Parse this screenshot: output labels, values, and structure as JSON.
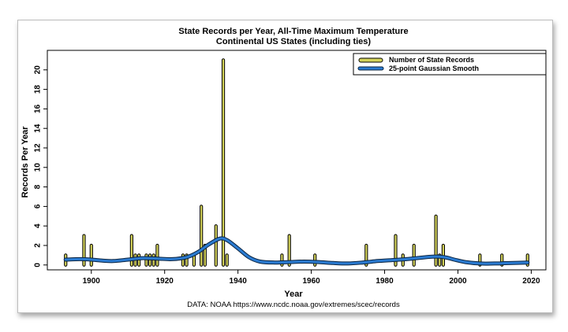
{
  "chart_data": {
    "type": "bar",
    "title": "State Records per Year, All-Time Maximum Temperature",
    "subtitle": "Continental US States (including ties)",
    "xlabel": "Year",
    "ylabel": "Records Per Year",
    "source": "DATA: NOAA https://www.ncdc.noaa.gov/extremes/scec/records",
    "xlim": [
      1888,
      2024
    ],
    "ylim": [
      -0.5,
      22
    ],
    "x_ticks": [
      1900,
      1920,
      1940,
      1960,
      1980,
      2000,
      2020
    ],
    "y_ticks": [
      0,
      2,
      4,
      6,
      8,
      10,
      12,
      14,
      16,
      18,
      20
    ],
    "legend_position": "top-right",
    "series": [
      {
        "name": "Number of State Records",
        "kind": "bar",
        "color": "#d4d35a",
        "outline": "#000000",
        "data": [
          {
            "year": 1893,
            "value": 1
          },
          {
            "year": 1898,
            "value": 3
          },
          {
            "year": 1900,
            "value": 2
          },
          {
            "year": 1911,
            "value": 3
          },
          {
            "year": 1912,
            "value": 1
          },
          {
            "year": 1913,
            "value": 1
          },
          {
            "year": 1915,
            "value": 1
          },
          {
            "year": 1916,
            "value": 1
          },
          {
            "year": 1917,
            "value": 1
          },
          {
            "year": 1918,
            "value": 2
          },
          {
            "year": 1925,
            "value": 1
          },
          {
            "year": 1926,
            "value": 1
          },
          {
            "year": 1928,
            "value": 1
          },
          {
            "year": 1930,
            "value": 6
          },
          {
            "year": 1931,
            "value": 2
          },
          {
            "year": 1934,
            "value": 4
          },
          {
            "year": 1936,
            "value": 21
          },
          {
            "year": 1937,
            "value": 1
          },
          {
            "year": 1952,
            "value": 1
          },
          {
            "year": 1954,
            "value": 3
          },
          {
            "year": 1961,
            "value": 1
          },
          {
            "year": 1975,
            "value": 2
          },
          {
            "year": 1983,
            "value": 3
          },
          {
            "year": 1985,
            "value": 1
          },
          {
            "year": 1988,
            "value": 2
          },
          {
            "year": 1994,
            "value": 5
          },
          {
            "year": 1995,
            "value": 1
          },
          {
            "year": 1996,
            "value": 2
          },
          {
            "year": 2006,
            "value": 1
          },
          {
            "year": 2012,
            "value": 1
          },
          {
            "year": 2019,
            "value": 1
          }
        ]
      },
      {
        "name": "25-point Gaussian Smooth",
        "kind": "line",
        "color": "#2b7bd1",
        "outline": "#0b2440",
        "x": [
          1893,
          1897,
          1900,
          1903,
          1906,
          1910,
          1914,
          1918,
          1922,
          1926,
          1929,
          1932,
          1935,
          1937,
          1940,
          1943,
          1946,
          1950,
          1954,
          1958,
          1962,
          1966,
          1970,
          1974,
          1978,
          1982,
          1986,
          1990,
          1993,
          1995,
          1997,
          1999,
          2002,
          2006,
          2010,
          2015,
          2019
        ],
        "y": [
          0.55,
          0.6,
          0.55,
          0.45,
          0.4,
          0.55,
          0.7,
          0.65,
          0.6,
          0.8,
          1.3,
          2.1,
          2.7,
          2.55,
          1.7,
          0.8,
          0.35,
          0.25,
          0.3,
          0.35,
          0.3,
          0.2,
          0.15,
          0.25,
          0.4,
          0.5,
          0.6,
          0.75,
          0.85,
          0.85,
          0.75,
          0.55,
          0.3,
          0.15,
          0.15,
          0.2,
          0.25
        ]
      }
    ]
  }
}
